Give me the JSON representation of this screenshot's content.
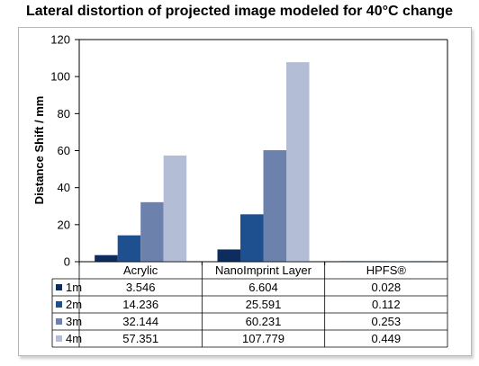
{
  "chart_data": {
    "type": "bar",
    "title": "Lateral distortion of projected image modeled for 40°C change",
    "ylabel": "Distance Shift / mm",
    "xlabel": "",
    "ylim": [
      0,
      120
    ],
    "yticks": [
      0,
      20,
      40,
      60,
      80,
      100,
      120
    ],
    "categories": [
      "Acrylic",
      "NanoImprint Layer",
      "HPFS®"
    ],
    "series": [
      {
        "name": "1m",
        "color": "#0d2d5e",
        "values": [
          3.546,
          6.604,
          0.028
        ],
        "labels": [
          "3.546",
          "6.604",
          "0.028"
        ]
      },
      {
        "name": "2m",
        "color": "#1e4f8e",
        "values": [
          14.236,
          25.591,
          0.112
        ],
        "labels": [
          "14.236",
          "25.591",
          "0.112"
        ]
      },
      {
        "name": "3m",
        "color": "#6c82ad",
        "values": [
          32.144,
          60.231,
          0.253
        ],
        "labels": [
          "32.144",
          "60.231",
          "0.253"
        ]
      },
      {
        "name": "4m",
        "color": "#b3bed6",
        "values": [
          57.351,
          107.779,
          0.449
        ],
        "labels": [
          "57.351",
          "107.779",
          "0.449"
        ]
      }
    ],
    "grid": false,
    "legend": "data-table-left"
  }
}
